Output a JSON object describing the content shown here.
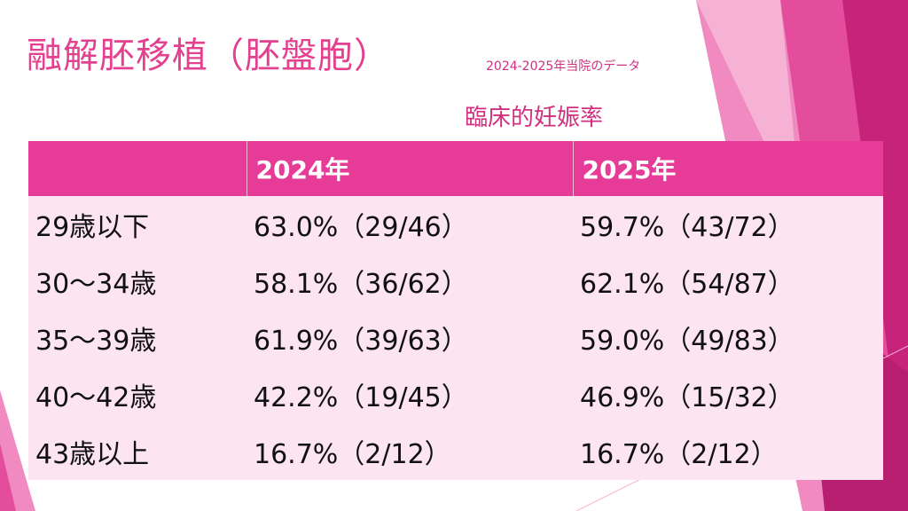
{
  "slide": {
    "title": "融解胚移植（胚盤胞）",
    "period_note": "2024-2025年当院のデータ",
    "subtitle": "臨床的妊娠率"
  },
  "colors": {
    "accent": "#e63c98",
    "title": "#e3408f",
    "row_bg": "#fce4f1",
    "header_text": "#ffffff"
  },
  "table": {
    "headers": [
      "",
      "2024年",
      "2025年"
    ],
    "rows": [
      {
        "age": "29歳以下",
        "y2024": "63.0%（29/46）",
        "y2025": "59.7%（43/72）"
      },
      {
        "age": "30～34歳",
        "y2024": "58.1%（36/62）",
        "y2025": "62.1%（54/87）"
      },
      {
        "age": "35～39歳",
        "y2024": "61.9%（39/63）",
        "y2025": "59.0%（49/83）"
      },
      {
        "age": "40～42歳",
        "y2024": "42.2%（19/45）",
        "y2025": "46.9%（15/32）"
      },
      {
        "age": "43歳以上",
        "y2024": "16.7%（2/12）",
        "y2025": "16.7%（2/12）"
      }
    ]
  }
}
